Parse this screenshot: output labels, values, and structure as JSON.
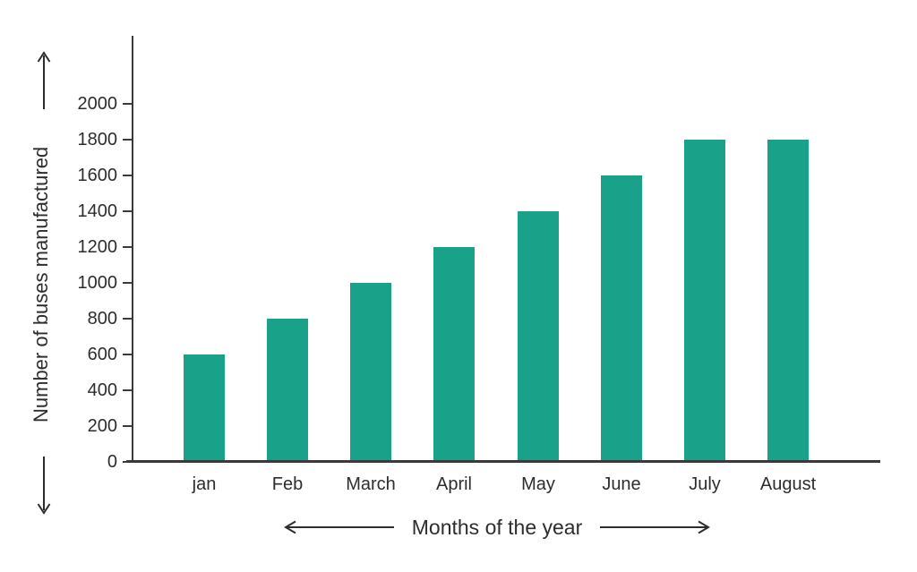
{
  "figure": {
    "background": "#ffffff"
  },
  "chart_data": {
    "type": "bar",
    "title": "",
    "categories": [
      "jan",
      "Feb",
      "March",
      "April",
      "May",
      "June",
      "July",
      "August"
    ],
    "values": [
      600,
      800,
      1000,
      1200,
      1400,
      1600,
      1800,
      1800
    ],
    "xlabel": "Months of the year",
    "ylabel": "Number of buses manufactured",
    "ylim": [
      0,
      2000
    ],
    "yticks": [
      0,
      200,
      400,
      600,
      800,
      1000,
      1200,
      1400,
      1600,
      1800,
      2000
    ],
    "grid": false,
    "legend": "none",
    "bar_color": "#19a189",
    "axis_color": "#3a3a3a",
    "text_color": "#2d2d2d"
  }
}
